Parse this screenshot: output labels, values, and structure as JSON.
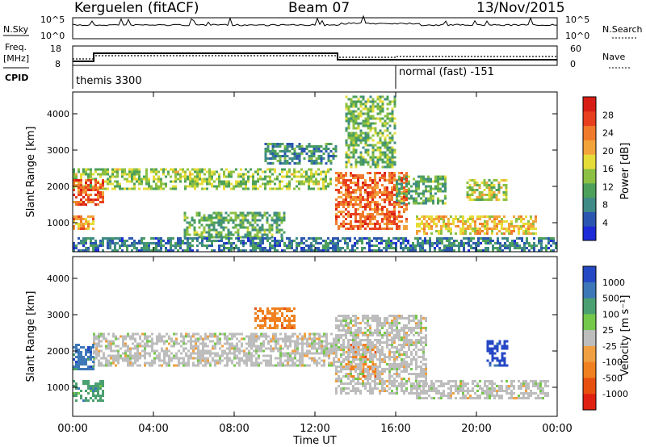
{
  "header": {
    "station": "Kerguelen (fitACF)",
    "beam": "Beam 07",
    "date": "13/Nov/2015"
  },
  "strip": {
    "nsky_label": "N.Sky",
    "nsky_ticks": [
      "10^5",
      "10^0"
    ],
    "nsearch_label": "N.Search",
    "nsearch_ticks": [
      "10^5",
      "10^0"
    ],
    "freq_label_1": "Freq.",
    "freq_label_2": "[MHz]",
    "freq_ticks": [
      "18",
      "8"
    ],
    "nave_label": "Nave",
    "nave_ticks": [
      "60",
      "0"
    ],
    "cpid_label": "CPID",
    "cpid_1": "themis 3300",
    "cpid_2": "normal (fast) -151"
  },
  "colors": {
    "power_scale": [
      "#1d2ad8",
      "#2a55b0",
      "#3f8a86",
      "#4ca05a",
      "#8cc043",
      "#e6dc38",
      "#f2a33a",
      "#f07a2b",
      "#e8401e",
      "#d81e14"
    ],
    "velocity_scale": [
      "#2548c4",
      "#3c78b8",
      "#4aa070",
      "#74c84a",
      "#bdbdbd",
      "#f0a040",
      "#f08020",
      "#e85010",
      "#e02010"
    ]
  },
  "chart_data": [
    {
      "type": "heatmap",
      "title": "Power",
      "ylabel": "Slant Range [km]",
      "xlabel": "",
      "x_ticks": [
        "00:00",
        "04:00",
        "08:00",
        "12:00",
        "16:00",
        "20:00",
        "00:00"
      ],
      "y_ticks": [
        1000,
        2000,
        3000,
        4000
      ],
      "ylim": [
        200,
        4600
      ],
      "colorbar_label": "Power [dB]",
      "colorbar_ticks": [
        4,
        8,
        12,
        16,
        20,
        24,
        28
      ],
      "features": [
        {
          "t0": 0.0,
          "t1": 12.8,
          "r0": 1900,
          "r1": 2500,
          "level": 0.45
        },
        {
          "t0": 0.0,
          "t1": 1.5,
          "r0": 1500,
          "r1": 2200,
          "level": 0.85
        },
        {
          "t0": 0.0,
          "t1": 1.0,
          "r0": 800,
          "r1": 1200,
          "level": 0.7
        },
        {
          "t0": 5.5,
          "t1": 10.5,
          "r0": 600,
          "r1": 1300,
          "level": 0.35
        },
        {
          "t0": 9.5,
          "t1": 13.0,
          "r0": 2600,
          "r1": 3200,
          "level": 0.25
        },
        {
          "t0": 13.0,
          "t1": 16.5,
          "r0": 800,
          "r1": 2400,
          "level": 0.8
        },
        {
          "t0": 13.5,
          "t1": 16.0,
          "r0": 2500,
          "r1": 4500,
          "level": 0.4
        },
        {
          "t0": 16.0,
          "t1": 18.5,
          "r0": 1500,
          "r1": 2300,
          "level": 0.35
        },
        {
          "t0": 17.0,
          "t1": 23.0,
          "r0": 700,
          "r1": 1200,
          "level": 0.6
        },
        {
          "t0": 19.5,
          "t1": 21.5,
          "r0": 1600,
          "r1": 2200,
          "level": 0.5
        },
        {
          "t0": 0.0,
          "t1": 24.0,
          "r0": 250,
          "r1": 600,
          "level": 0.2
        }
      ]
    },
    {
      "type": "heatmap",
      "title": "Velocity",
      "ylabel": "Slant Range [km]",
      "xlabel": "Time UT",
      "x_ticks": [
        "00:00",
        "04:00",
        "08:00",
        "12:00",
        "16:00",
        "20:00",
        "00:00"
      ],
      "y_ticks": [
        1000,
        2000,
        3000,
        4000
      ],
      "ylim": [
        200,
        4600
      ],
      "colorbar_label": "Velocity [m s⁻¹]",
      "colorbar_ticks": [
        1000,
        500,
        100,
        25,
        -25,
        -100,
        -500,
        -1000
      ],
      "features": [
        {
          "t0": 1.0,
          "t1": 13.0,
          "r0": 1600,
          "r1": 2500,
          "value": 0
        },
        {
          "t0": 0.0,
          "t1": 1.0,
          "r0": 1500,
          "r1": 2200,
          "value": 150
        },
        {
          "t0": 0.0,
          "t1": 1.5,
          "r0": 600,
          "r1": 1200,
          "value": 80
        },
        {
          "t0": 9.0,
          "t1": 11.0,
          "r0": 2600,
          "r1": 3200,
          "value": -300
        },
        {
          "t0": 13.5,
          "t1": 15.0,
          "r0": 1300,
          "r1": 2200,
          "value": -200
        },
        {
          "t0": 13.0,
          "t1": 17.5,
          "r0": 800,
          "r1": 3000,
          "value": 0
        },
        {
          "t0": 17.0,
          "t1": 23.5,
          "r0": 700,
          "r1": 1200,
          "value": 10
        },
        {
          "t0": 20.5,
          "t1": 21.5,
          "r0": 1600,
          "r1": 2300,
          "value": 600
        }
      ]
    }
  ]
}
